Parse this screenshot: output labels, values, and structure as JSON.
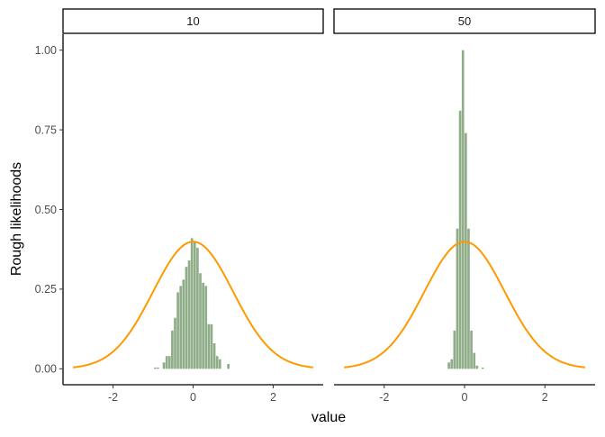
{
  "chart_data": {
    "type": "bar",
    "ylabel": "Rough likelihoods",
    "xlabel": "value",
    "xlim": [
      -3.25,
      3.25
    ],
    "ylim": [
      -0.05,
      1.05
    ],
    "xticks": [
      -2,
      0,
      2
    ],
    "xtick_labels": [
      "-2",
      "0",
      "2"
    ],
    "yticks": [
      0,
      0.25,
      0.5,
      0.75,
      1
    ],
    "ytick_labels": [
      "0.00",
      "0.25",
      "0.50",
      "0.75",
      "1.00"
    ],
    "grid": false,
    "bar_color": "#8fad88",
    "curve_color": "#ff9900",
    "curve": {
      "name": "normal density",
      "mean": 0,
      "sd": 1,
      "x_from": -3,
      "x_to": 3
    },
    "facets": [
      {
        "label": "10",
        "bins": [
          {
            "x": -0.95,
            "y": 0.004
          },
          {
            "x": -0.88,
            "y": 0.004
          },
          {
            "x": -0.73,
            "y": 0.02
          },
          {
            "x": -0.66,
            "y": 0.04
          },
          {
            "x": -0.59,
            "y": 0.04
          },
          {
            "x": -0.52,
            "y": 0.12
          },
          {
            "x": -0.45,
            "y": 0.16
          },
          {
            "x": -0.38,
            "y": 0.24
          },
          {
            "x": -0.31,
            "y": 0.26
          },
          {
            "x": -0.24,
            "y": 0.28
          },
          {
            "x": -0.17,
            "y": 0.32
          },
          {
            "x": -0.1,
            "y": 0.34
          },
          {
            "x": -0.03,
            "y": 0.41
          },
          {
            "x": 0.04,
            "y": 0.4
          },
          {
            "x": 0.11,
            "y": 0.38
          },
          {
            "x": 0.18,
            "y": 0.3
          },
          {
            "x": 0.25,
            "y": 0.27
          },
          {
            "x": 0.32,
            "y": 0.26
          },
          {
            "x": 0.39,
            "y": 0.14
          },
          {
            "x": 0.46,
            "y": 0.14
          },
          {
            "x": 0.53,
            "y": 0.08
          },
          {
            "x": 0.6,
            "y": 0.04
          },
          {
            "x": 0.67,
            "y": 0.03
          },
          {
            "x": 0.88,
            "y": 0.015
          }
        ]
      },
      {
        "label": "50",
        "bins": [
          {
            "x": -0.39,
            "y": 0.02
          },
          {
            "x": -0.32,
            "y": 0.03
          },
          {
            "x": -0.25,
            "y": 0.12
          },
          {
            "x": -0.18,
            "y": 0.44
          },
          {
            "x": -0.11,
            "y": 0.81
          },
          {
            "x": -0.04,
            "y": 1.0
          },
          {
            "x": 0.03,
            "y": 0.74
          },
          {
            "x": 0.1,
            "y": 0.44
          },
          {
            "x": 0.17,
            "y": 0.12
          },
          {
            "x": 0.24,
            "y": 0.05
          },
          {
            "x": 0.31,
            "y": 0.01
          },
          {
            "x": 0.45,
            "y": 0.004
          }
        ]
      }
    ]
  }
}
